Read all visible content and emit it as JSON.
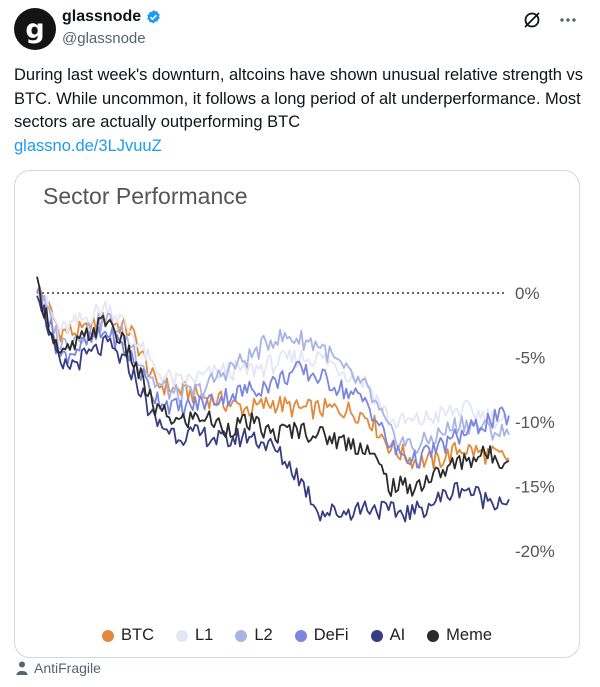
{
  "author": {
    "avatar_letter": "g",
    "name": "glassnode",
    "handle": "@glassnode"
  },
  "tweet": {
    "text": "During last week's downturn, altcoins have shown unusual relative strength vs BTC. While uncommon, it follows a long period of alt underperformance. Most sectors are actually outperforming BTC",
    "link": "glassno.de/3LJvuuZ"
  },
  "footer": {
    "label": "AntiFragile"
  },
  "icons": {
    "verified": "verified-badge-icon",
    "grok": "grok-icon",
    "more": "more-icon",
    "person": "person-icon"
  },
  "colors": {
    "link": "#1d9bf0",
    "verified": "#1d9bf0"
  },
  "chart_data": {
    "type": "line",
    "title": "Sector Performance",
    "y_ticks": [
      "0%",
      "-5%",
      "-10%",
      "-15%",
      "-20%"
    ],
    "ylim": [
      -20,
      0
    ],
    "reference_line": 0,
    "x_index": [
      0,
      5,
      10,
      15,
      20,
      25,
      30,
      35,
      40,
      45,
      50,
      55,
      60,
      65,
      70,
      75,
      80,
      85,
      90,
      95,
      100
    ],
    "series": [
      {
        "name": "BTC",
        "color": "#e28a3b",
        "values": [
          0.5,
          -3,
          -3,
          -2,
          -3,
          -7,
          -7.5,
          -8,
          -8.5,
          -9,
          -8.5,
          -9,
          -9,
          -9,
          -9.5,
          -12,
          -13,
          -13,
          -12,
          -12.5,
          -12.8
        ]
      },
      {
        "name": "L1",
        "color": "#e4e6f4",
        "values": [
          0.5,
          -3,
          -2,
          -1,
          -3,
          -6,
          -7,
          -6.5,
          -6,
          -6,
          -5.5,
          -5,
          -5,
          -6,
          -7,
          -10,
          -10,
          -9.5,
          -9,
          -9.5,
          -10
        ]
      },
      {
        "name": "L2",
        "color": "#a9b4e6",
        "values": [
          0.5,
          -4,
          -3,
          -2,
          -4,
          -7,
          -8,
          -7.5,
          -6,
          -5,
          -3.5,
          -3.5,
          -4,
          -6,
          -7.5,
          -11,
          -12,
          -11,
          -10,
          -10.5,
          -11
        ]
      },
      {
        "name": "DeFi",
        "color": "#7a86df",
        "values": [
          0.5,
          -5,
          -4,
          -3,
          -5,
          -8,
          -9,
          -8.5,
          -8,
          -7.5,
          -7,
          -6,
          -6.5,
          -7.5,
          -8.5,
          -12,
          -13,
          -12,
          -11,
          -10,
          -9.5
        ]
      },
      {
        "name": "AI",
        "color": "#383c80",
        "values": [
          0.5,
          -6,
          -5,
          -4,
          -6,
          -10,
          -11,
          -11,
          -11.5,
          -11,
          -12,
          -14,
          -17,
          -17,
          -16.5,
          -17,
          -17,
          -16,
          -15,
          -16,
          -16
        ]
      },
      {
        "name": "Meme",
        "color": "#2b2b2b",
        "values": [
          0.5,
          -5,
          -3.5,
          -2,
          -5,
          -9,
          -10,
          -9.5,
          -10.5,
          -10,
          -11,
          -10.5,
          -11,
          -11.5,
          -12,
          -15,
          -15,
          -14,
          -13,
          -12.5,
          -13
        ]
      }
    ],
    "grid": false,
    "legend": "bottom"
  }
}
